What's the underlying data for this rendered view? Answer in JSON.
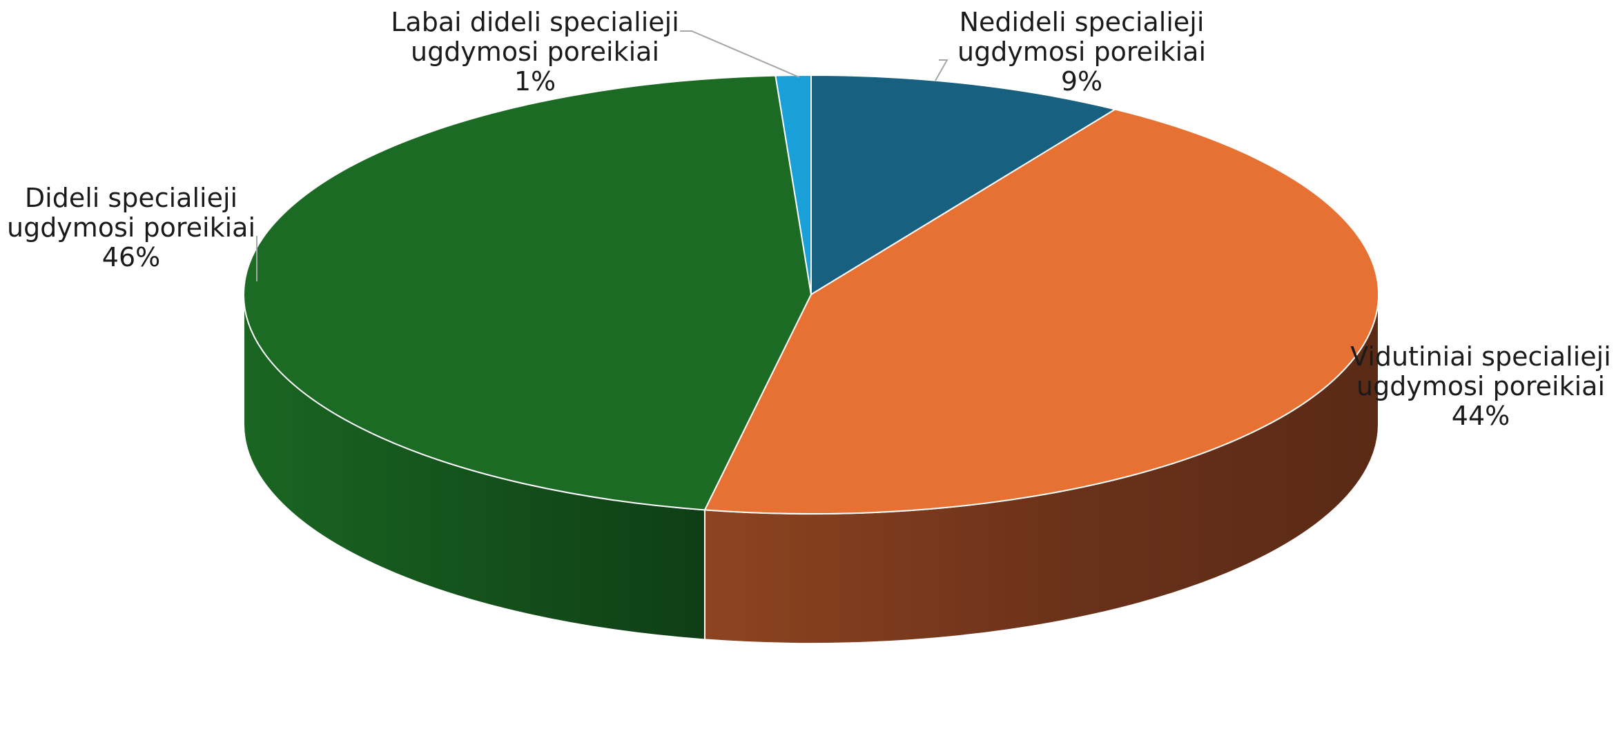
{
  "chart_data": {
    "type": "pie",
    "three_d": true,
    "start_angle_deg": 0,
    "direction": "clockwise",
    "slices": [
      {
        "label_lines": [
          "Nedideli specialieji",
          "ugdymosi poreikiai"
        ],
        "percent_label": "9%",
        "value": 9,
        "color": "#17607f",
        "side_color": "#0f4a62"
      },
      {
        "label_lines": [
          "Vidutiniai specialieji",
          "ugdymosi poreikiai"
        ],
        "percent_label": "44%",
        "value": 44,
        "color": "#e67132",
        "side_color": "#a0461e"
      },
      {
        "label_lines": [
          "Dideli specialieji",
          "ugdymosi poreikiai"
        ],
        "percent_label": "46%",
        "value": 46,
        "color": "#1c6b24",
        "side_color": "#124f1a"
      },
      {
        "label_lines": [
          "Labai dideli specialieji",
          "ugdymosi poreikiai"
        ],
        "percent_label": "1%",
        "value": 1,
        "color": "#1aa0d8",
        "side_color": "#107aa6"
      }
    ]
  }
}
